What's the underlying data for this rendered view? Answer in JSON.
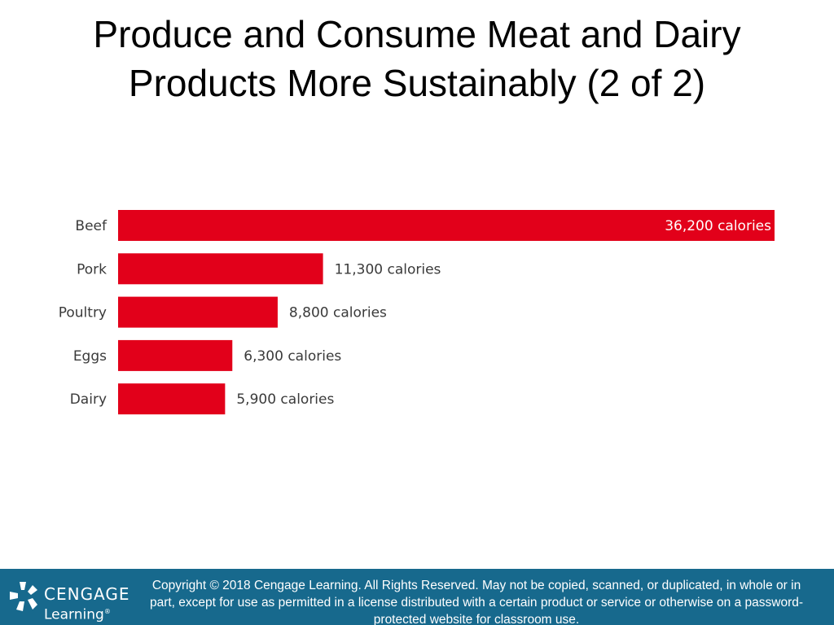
{
  "slide": {
    "title_line1": "Produce and Consume Meat and Dairy",
    "title_line2": "Products More Sustainably (2 of 2)"
  },
  "colors": {
    "bar": "#e2001a",
    "footer": "#17698d"
  },
  "chart_data": {
    "type": "bar",
    "orientation": "horizontal",
    "categories": [
      "Beef",
      "Pork",
      "Poultry",
      "Eggs",
      "Dairy"
    ],
    "values": [
      36200,
      11300,
      8800,
      6300,
      5900
    ],
    "data_labels": [
      "36,200 calories",
      "11,300 calories",
      "8,800 calories",
      "6,300 calories",
      "5,900 calories"
    ],
    "title": "",
    "xlabel": "",
    "ylabel": "",
    "xlim": [
      0,
      36200
    ],
    "grid": false,
    "legend": "none"
  },
  "footer": {
    "logo_line1": "CENGAGE",
    "logo_line2": "Learning",
    "logo_reg": "®",
    "copyright": "Copyright © 2018 Cengage Learning. All Rights Reserved. May not be copied, scanned, or duplicated, in whole or in part, except for use as permitted in a license distributed with a certain product or service or otherwise on a password-protected website for classroom use."
  }
}
